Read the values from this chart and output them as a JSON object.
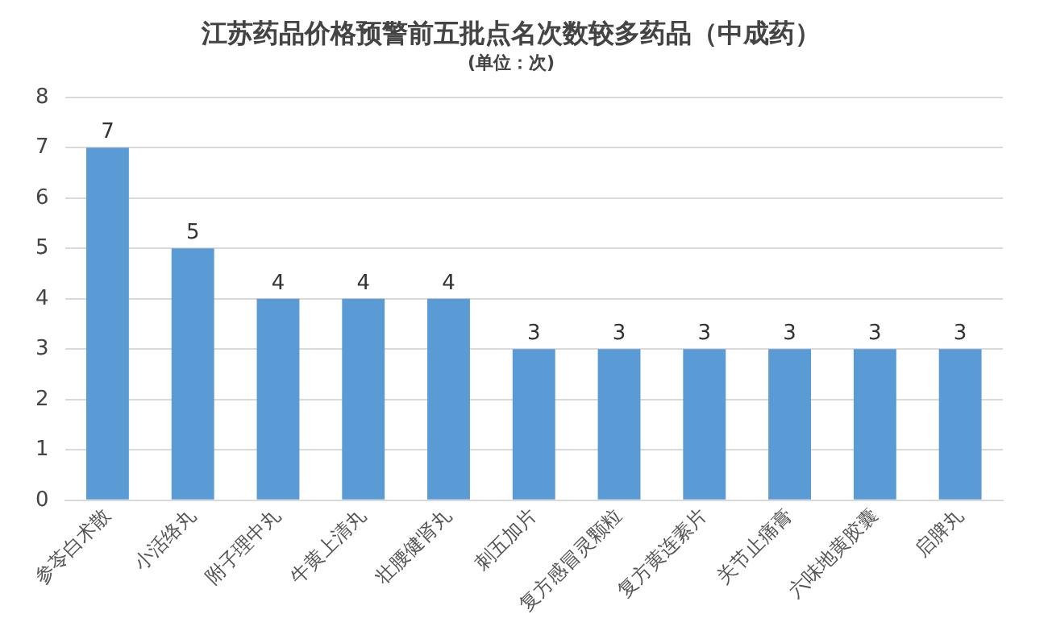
{
  "chart_data": {
    "type": "bar",
    "title": "江苏药品价格预警前五批点名次数较多药品（中成药）",
    "subtitle": "(单位：次)",
    "categories": [
      "参苓白术散",
      "小活络丸",
      "附子理中丸",
      "牛黄上清丸",
      "壮腰健肾丸",
      "刺五加片",
      "复方感冒灵颗粒",
      "复方黄连素片",
      "关节止痛膏",
      "六味地黄胶囊",
      "启脾丸"
    ],
    "values": [
      7,
      5,
      4,
      4,
      4,
      3,
      3,
      3,
      3,
      3,
      3
    ],
    "color": "#5b9bd5",
    "ylim": [
      0,
      8
    ],
    "yticks": [
      0,
      1,
      2,
      3,
      4,
      5,
      6,
      7,
      8
    ],
    "grid": "y",
    "data_labels": true,
    "legend": false
  }
}
